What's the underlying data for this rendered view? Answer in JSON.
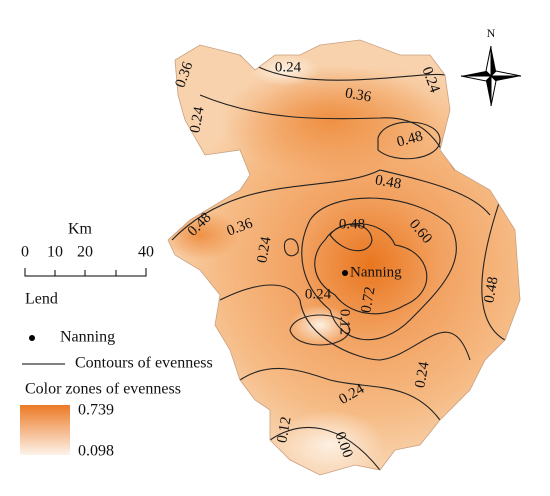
{
  "north": "N",
  "city": "Nanning",
  "scale_bar": {
    "unit": "Km",
    "labels": [
      "0",
      "10",
      "20",
      "40"
    ]
  },
  "legend": {
    "title": "Lend",
    "point": "Nanning",
    "line": "Contours of evenness",
    "color_title": "Color zones of evenness",
    "max": "0.739",
    "min": "0.098"
  },
  "contour_labels": [
    "0.36",
    "0.24",
    "0.24",
    "0.36",
    "0.24",
    "0.48",
    "0.48",
    "0.48",
    "0.36",
    "0.60",
    "0.48",
    "0.24",
    "0.24",
    "0.72",
    "0.12",
    "0.48",
    "0.24",
    "0.24",
    "0.12",
    "0.00"
  ]
}
